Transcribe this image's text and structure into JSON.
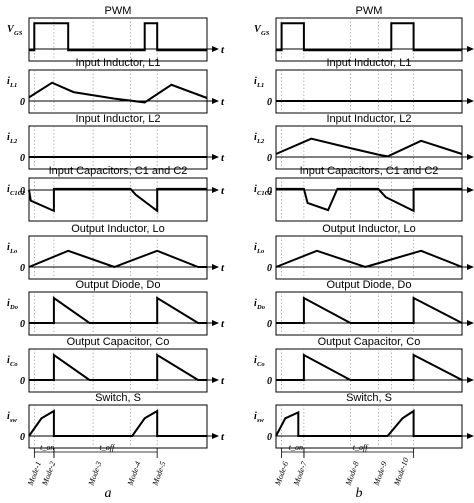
{
  "panel_a": {
    "caption": "a",
    "rows": [
      {
        "title": "PWM",
        "label": "V",
        "sub": "GS",
        "zero": "",
        "t": "t"
      },
      {
        "title": "Input Inductor, L1",
        "label": "i",
        "sub": "L1",
        "zero": "0",
        "t": "t"
      },
      {
        "title": "Input Inductor, L2",
        "label": "i",
        "sub": "L2",
        "zero": "0",
        "t": "t"
      },
      {
        "title": "Input Capacitors, C1 and C2",
        "label": "i",
        "sub": "C1C2",
        "zero": "0",
        "t": "t"
      },
      {
        "title": "Output Inductor, Lo",
        "label": "i",
        "sub": "Lo",
        "zero": "0",
        "t": "t"
      },
      {
        "title": "Output Diode, Do",
        "label": "i",
        "sub": "Do",
        "zero": "0",
        "t": "t"
      },
      {
        "title": "Output Capacitor, Co",
        "label": "i",
        "sub": "Co",
        "zero": "0",
        "t": "t"
      },
      {
        "title": "Switch, S",
        "label": "i",
        "sub": "sw",
        "zero": "0",
        "t": "t"
      }
    ],
    "ton": "t_on",
    "toff": "t_off",
    "modes": [
      "Mode-1",
      "Mode-2",
      "Mode-3",
      "Mode-4",
      "Mode-5"
    ]
  },
  "panel_b": {
    "caption": "b",
    "rows": [
      {
        "title": "PWM",
        "label": "V",
        "sub": "GS",
        "zero": "",
        "t": "t"
      },
      {
        "title": "Input Inductor, L1",
        "label": "i",
        "sub": "L1",
        "zero": "0",
        "t": "t"
      },
      {
        "title": "Input Inductor, L2",
        "label": "i",
        "sub": "L2",
        "zero": "0",
        "t": "t"
      },
      {
        "title": "Input Capacitors, C1 and C2",
        "label": "i",
        "sub": "C1C2",
        "zero": "0",
        "t": "t"
      },
      {
        "title": "Output Inductor, Lo",
        "label": "i",
        "sub": "Lo",
        "zero": "0",
        "t": "t"
      },
      {
        "title": "Output Diode, Do",
        "label": "i",
        "sub": "Do",
        "zero": "0",
        "t": "t"
      },
      {
        "title": "Output Capacitor, Co",
        "label": "i",
        "sub": "Co",
        "zero": "0",
        "t": "t"
      },
      {
        "title": "Switch, S",
        "label": "i",
        "sub": "sw",
        "zero": "0",
        "t": "t"
      }
    ],
    "ton": "t_on",
    "toff": "t_off",
    "modes": [
      "Mode-6",
      "Mode-7",
      "Mode-8",
      "Mode-9",
      "Mode-10"
    ]
  }
}
